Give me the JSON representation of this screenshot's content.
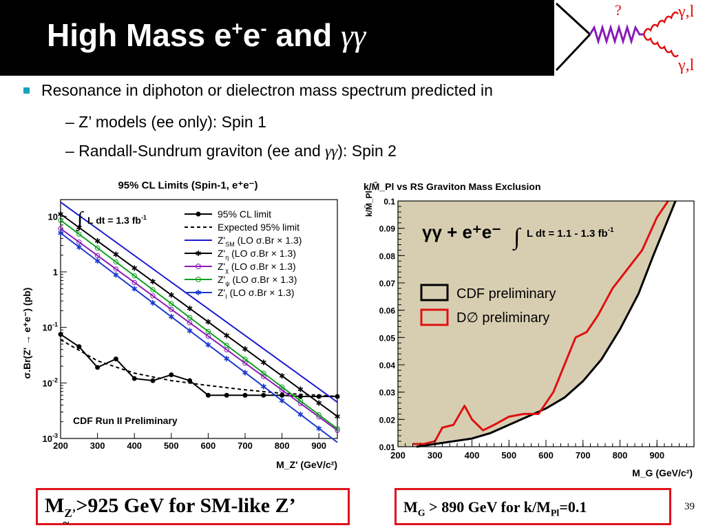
{
  "title": {
    "main": "High Mass e",
    "sup1": "+",
    "mid": "e",
    "sup2": "-",
    "and": " and ",
    "gg": "γγ"
  },
  "feynman": {
    "q": "?",
    "out1": "γ,l",
    "out2": "γ,l"
  },
  "bullets": {
    "main": "Resonance in diphoton or dielectron mass spectrum predicted in",
    "sub1": "–  Z’ models (ee only): Spin 1",
    "sub2_a": "–  Randall-Sundrum graviton (ee and ",
    "sub2_gg": "γγ",
    "sub2_b": "): Spin 2"
  },
  "colors": {
    "accent_bullet": "#18a2b8",
    "highlight_box": "#e0101a",
    "excluded_region": "#d7ceb2"
  },
  "chart_data": [
    {
      "type": "line",
      "title": "95% CL Limits (Spin-1, e⁺e⁻)",
      "xlabel": "M_Z' (GeV/c²)",
      "ylabel": "σ.Br(Z' → e⁺e⁻) (pb)",
      "xlim": [
        200,
        950
      ],
      "ylim": [
        0.001,
        20
      ],
      "yscale": "log",
      "xticks": [
        200,
        300,
        400,
        500,
        600,
        700,
        800,
        900
      ],
      "yticks": [
        {
          "v": 0.001,
          "b": "10",
          "e": "-3"
        },
        {
          "v": 0.01,
          "b": "10",
          "e": "-2"
        },
        {
          "v": 0.1,
          "b": "10",
          "e": "-1"
        },
        {
          "v": 1,
          "b": "1",
          "e": ""
        },
        {
          "v": 10,
          "b": "10",
          "e": ""
        }
      ],
      "lumi_label": "L dt =  1.3 fb",
      "lumi_sup": "-1",
      "annotation": "CDF Run II Preliminary",
      "legend": [
        {
          "label": "95% CL limit",
          "sub": "",
          "rest": "",
          "color": "#000000",
          "style": "solid",
          "marker": "dot"
        },
        {
          "label": "Expected 95% limit",
          "sub": "",
          "rest": "",
          "color": "#000000",
          "style": "dash",
          "marker": ""
        },
        {
          "label": "Z'",
          "sub": "SM",
          "rest": " (LO σ.Br × 1.3)",
          "color": "#1a1ad0",
          "style": "solid",
          "marker": ""
        },
        {
          "label": "Z'",
          "sub": "η",
          "rest": " (LO σ.Br × 1.3)",
          "color": "#000000",
          "style": "solid",
          "marker": "star"
        },
        {
          "label": "Z'",
          "sub": "χ",
          "rest": " (LO σ.Br × 1.3)",
          "color": "#8a1ab8",
          "style": "solid",
          "marker": "circle"
        },
        {
          "label": "Z'",
          "sub": "ψ",
          "rest": " (LO σ.Br × 1.3)",
          "color": "#10a020",
          "style": "solid",
          "marker": "circle"
        },
        {
          "label": "Z'",
          "sub": "I",
          "rest": " (LO σ.Br × 1.3)",
          "color": "#1a3ad0",
          "style": "solid",
          "marker": "star"
        }
      ],
      "series": [
        {
          "name": "95% CL limit",
          "color": "#000000",
          "style": "solid",
          "marker": "dot",
          "x": [
            200,
            250,
            300,
            350,
            400,
            450,
            500,
            550,
            600,
            650,
            700,
            750,
            800,
            850,
            900,
            950
          ],
          "y": [
            0.075,
            0.045,
            0.019,
            0.027,
            0.012,
            0.011,
            0.014,
            0.011,
            0.006,
            0.006,
            0.006,
            0.006,
            0.006,
            0.0057,
            0.0057,
            0.0057
          ]
        },
        {
          "name": "Expected 95% limit",
          "color": "#000000",
          "style": "dash",
          "marker": "",
          "x": [
            200,
            300,
            400,
            500,
            600,
            700,
            800,
            900,
            950
          ],
          "y": [
            0.06,
            0.025,
            0.015,
            0.011,
            0.009,
            0.0075,
            0.0065,
            0.006,
            0.0057
          ]
        },
        {
          "name": "Z'SM",
          "color": "#1a1ad0",
          "style": "solid",
          "marker": "",
          "x": [
            200,
            950
          ],
          "y": [
            18,
            0.0045
          ]
        },
        {
          "name": "Z'η",
          "color": "#000000",
          "style": "solid",
          "marker": "star",
          "x": [
            200,
            950
          ],
          "y": [
            11,
            0.0025
          ]
        },
        {
          "name": "Z'χ",
          "color": "#8a1ab8",
          "style": "solid",
          "marker": "circle",
          "x": [
            200,
            950
          ],
          "y": [
            6,
            0.0014
          ]
        },
        {
          "name": "Z'ψ",
          "color": "#10a020",
          "style": "solid",
          "marker": "circle",
          "x": [
            200,
            950
          ],
          "y": [
            8.5,
            0.0015
          ]
        },
        {
          "name": "Z'I",
          "color": "#1a3ad0",
          "style": "solid",
          "marker": "star",
          "x": [
            200,
            950
          ],
          "y": [
            5,
            0.00085
          ]
        }
      ]
    },
    {
      "type": "area",
      "title": "k/M̄_Pl vs RS Graviton Mass Exclusion",
      "xlabel": "M_G (GeV/c²)",
      "ylabel": "k/M̄_Pl",
      "xlim": [
        200,
        1000
      ],
      "ylim": [
        0.01,
        0.1
      ],
      "xticks": [
        200,
        300,
        400,
        500,
        600,
        700,
        800,
        900
      ],
      "yticks": [
        0.01,
        0.02,
        0.03,
        0.04,
        0.05,
        0.06,
        0.07,
        0.08,
        0.09,
        0.1
      ],
      "ytick_labels": [
        "0.01",
        "0.02",
        "0.03",
        "0.04",
        "0.05",
        "0.06",
        "0.07",
        "0.08",
        "0.09",
        "0.1"
      ],
      "channel_label": "γγ + e⁺e⁻",
      "lumi_label": "L dt =  1.1 - 1.3 fb",
      "lumi_sup": "-1",
      "legend": [
        {
          "label": "CDF preliminary",
          "color": "#000000"
        },
        {
          "label": "D∅ preliminary",
          "color": "#e01010"
        }
      ],
      "series": [
        {
          "name": "CDF preliminary",
          "color": "#000000",
          "fill": "#d7ceb2",
          "x": [
            250,
            300,
            350,
            400,
            450,
            500,
            550,
            600,
            650,
            700,
            750,
            800,
            850,
            890,
            920,
            950
          ],
          "y": [
            0.01,
            0.011,
            0.012,
            0.013,
            0.015,
            0.018,
            0.021,
            0.024,
            0.028,
            0.034,
            0.042,
            0.053,
            0.066,
            0.08,
            0.09,
            0.1
          ]
        },
        {
          "name": "D∅ preliminary",
          "color": "#e01010",
          "x": [
            240,
            270,
            300,
            320,
            350,
            380,
            400,
            430,
            460,
            500,
            540,
            580,
            620,
            650,
            680,
            710,
            740,
            780,
            820,
            860,
            900,
            930
          ],
          "y": [
            0.011,
            0.011,
            0.012,
            0.017,
            0.018,
            0.025,
            0.02,
            0.016,
            0.018,
            0.021,
            0.022,
            0.022,
            0.03,
            0.04,
            0.05,
            0.052,
            0.058,
            0.068,
            0.075,
            0.082,
            0.094,
            0.1
          ]
        }
      ]
    }
  ],
  "box1": {
    "m": "M",
    "sub": "Z’",
    "approx": "~",
    "rest": ">925 GeV for SM-like Z’"
  },
  "box2": {
    "m": "M",
    "sub": "G",
    "mid": " > 890 GeV for k/M",
    "sub2": "Pl",
    "rest": "=0.1"
  },
  "page_number": "39"
}
